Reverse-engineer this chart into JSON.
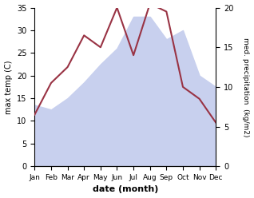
{
  "months": [
    "Jan",
    "Feb",
    "Mar",
    "Apr",
    "May",
    "Jun",
    "Jul",
    "Aug",
    "Sep",
    "Oct",
    "Nov",
    "Dec"
  ],
  "max_temp": [
    13.5,
    12.5,
    15.0,
    18.5,
    22.5,
    26.0,
    33.0,
    33.0,
    28.0,
    30.0,
    20.0,
    17.5
  ],
  "precipitation": [
    6.5,
    10.5,
    12.5,
    16.5,
    15.0,
    20.0,
    14.0,
    20.5,
    19.5,
    10.0,
    8.5,
    5.5
  ],
  "temp_fill_color": "#c8d0ee",
  "precip_color": "#993344",
  "left_ylim": [
    0,
    35
  ],
  "right_ylim": [
    0,
    20
  ],
  "left_ylabel": "max temp (C)",
  "right_ylabel": "med. precipitation  (kg/m2)",
  "xlabel": "date (month)",
  "left_yticks": [
    0,
    5,
    10,
    15,
    20,
    25,
    30,
    35
  ],
  "right_yticks": [
    0,
    5,
    10,
    15,
    20
  ],
  "background_color": "#ffffff"
}
